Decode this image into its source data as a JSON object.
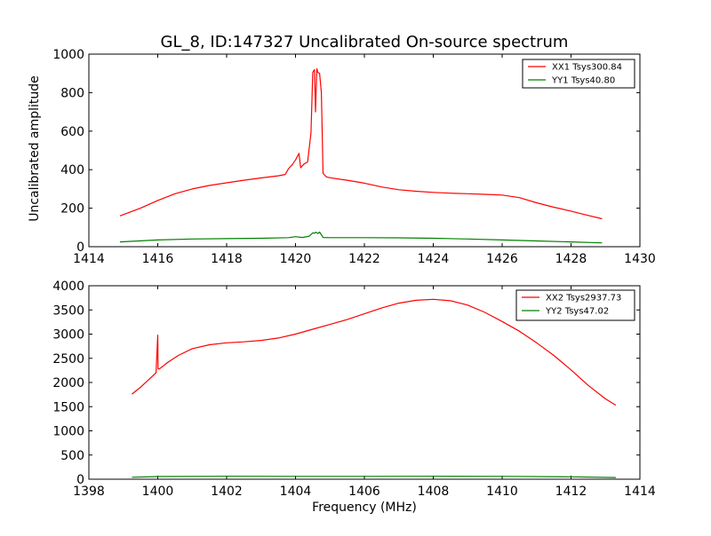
{
  "chart_data": [
    {
      "type": "line",
      "title": "GL_8, ID:147327 Uncalibrated On-source spectrum",
      "xlabel": "",
      "ylabel": "Uncalibrated amplitude",
      "xlim": [
        1414,
        1430
      ],
      "ylim": [
        0,
        1000
      ],
      "xticks": [
        "1414",
        "1416",
        "1418",
        "1420",
        "1422",
        "1424",
        "1426",
        "1428",
        "1430"
      ],
      "yticks": [
        "0",
        "200",
        "400",
        "600",
        "800",
        "1000"
      ],
      "grid": false,
      "legend_position": "top-right",
      "series": [
        {
          "name": "XX1 Tsys300.84",
          "color": "#ff0000",
          "x": [
            1414.9,
            1415.5,
            1416.0,
            1416.5,
            1417.0,
            1417.5,
            1418.0,
            1418.5,
            1419.0,
            1419.5,
            1419.7,
            1419.8,
            1419.9,
            1420.0,
            1420.1,
            1420.15,
            1420.25,
            1420.35,
            1420.45,
            1420.5,
            1420.55,
            1420.58,
            1420.62,
            1420.65,
            1420.7,
            1420.75,
            1420.8,
            1420.9,
            1421.0,
            1421.5,
            1422.0,
            1422.5,
            1423.0,
            1423.5,
            1424.0,
            1424.5,
            1425.0,
            1425.5,
            1426.0,
            1426.5,
            1427.0,
            1427.5,
            1428.0,
            1428.5,
            1428.9
          ],
          "y": [
            160,
            200,
            240,
            275,
            300,
            318,
            332,
            345,
            357,
            368,
            375,
            405,
            425,
            450,
            485,
            410,
            430,
            440,
            590,
            905,
            920,
            700,
            925,
            905,
            900,
            800,
            380,
            362,
            358,
            345,
            330,
            310,
            296,
            288,
            282,
            278,
            275,
            272,
            268,
            255,
            228,
            205,
            185,
            162,
            145
          ]
        },
        {
          "name": "YY1 Tsys40.80",
          "color": "#008000",
          "x": [
            1414.9,
            1416.0,
            1417.0,
            1418.0,
            1419.0,
            1419.8,
            1420.0,
            1420.2,
            1420.4,
            1420.5,
            1420.55,
            1420.6,
            1420.65,
            1420.7,
            1420.8,
            1421.0,
            1422.0,
            1423.0,
            1424.0,
            1425.0,
            1426.0,
            1427.0,
            1428.0,
            1428.9
          ],
          "y": [
            25,
            35,
            40,
            42,
            44,
            47,
            52,
            48,
            55,
            72,
            70,
            75,
            68,
            76,
            48,
            47,
            47,
            46,
            44,
            40,
            35,
            30,
            25,
            20
          ]
        }
      ]
    },
    {
      "type": "line",
      "title": "",
      "xlabel": "Frequency (MHz)",
      "ylabel": "",
      "xlim": [
        1398,
        1414
      ],
      "ylim": [
        0,
        4000
      ],
      "xticks": [
        "1398",
        "1400",
        "1402",
        "1404",
        "1406",
        "1408",
        "1410",
        "1412",
        "1414"
      ],
      "yticks": [
        "0",
        "500",
        "1000",
        "1500",
        "2000",
        "2500",
        "3000",
        "3500",
        "4000"
      ],
      "grid": false,
      "legend_position": "top-right",
      "series": [
        {
          "name": "XX2 Tsys2937.73",
          "color": "#ff0000",
          "x": [
            1399.25,
            1399.5,
            1399.8,
            1399.95,
            1400.0,
            1400.01,
            1400.05,
            1400.3,
            1400.6,
            1401.0,
            1401.5,
            1402.0,
            1402.5,
            1403.0,
            1403.5,
            1404.0,
            1404.5,
            1405.0,
            1405.5,
            1406.0,
            1406.5,
            1407.0,
            1407.5,
            1408.0,
            1408.5,
            1409.0,
            1409.5,
            1410.0,
            1410.5,
            1411.0,
            1411.5,
            1412.0,
            1412.5,
            1413.0,
            1413.3
          ],
          "y": [
            1760,
            1900,
            2100,
            2200,
            2980,
            2280,
            2280,
            2420,
            2560,
            2700,
            2780,
            2820,
            2840,
            2870,
            2920,
            3000,
            3100,
            3200,
            3300,
            3420,
            3540,
            3640,
            3700,
            3720,
            3690,
            3600,
            3450,
            3260,
            3060,
            2820,
            2560,
            2260,
            1940,
            1660,
            1530
          ]
        },
        {
          "name": "YY2 Tsys47.02",
          "color": "#008000",
          "x": [
            1399.25,
            1400.0,
            1402.0,
            1404.0,
            1406.0,
            1408.0,
            1410.0,
            1412.0,
            1413.3
          ],
          "y": [
            40,
            55,
            60,
            58,
            58,
            60,
            58,
            50,
            35
          ]
        }
      ]
    }
  ]
}
